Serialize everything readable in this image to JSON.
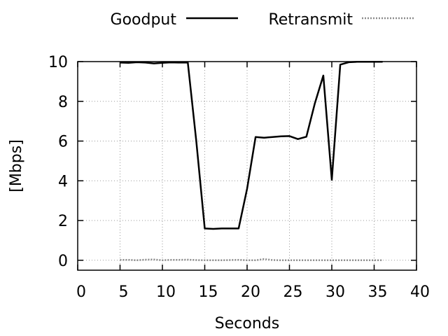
{
  "chart_data": {
    "type": "line",
    "title": "",
    "xlabel": "Seconds",
    "ylabel": "[Mbps]",
    "xlim": [
      0,
      40
    ],
    "ylim": [
      -0.5,
      10
    ],
    "x_ticks": [
      0,
      5,
      10,
      15,
      20,
      25,
      30,
      35,
      40
    ],
    "y_ticks": [
      0,
      2,
      4,
      6,
      8,
      10
    ],
    "grid": true,
    "legend_position": "top",
    "series": [
      {
        "name": "Goodput",
        "color": "#000000",
        "style": "solid",
        "x": [
          5,
          6,
          7,
          8,
          9,
          10,
          11,
          12,
          13,
          14,
          15,
          16,
          17,
          18,
          19,
          20,
          21,
          22,
          23,
          24,
          25,
          26,
          27,
          28,
          29,
          30,
          31,
          32,
          33,
          34,
          35,
          36
        ],
        "y": [
          9.95,
          9.94,
          9.97,
          9.95,
          9.91,
          9.94,
          9.96,
          9.95,
          9.95,
          6.0,
          1.6,
          1.58,
          1.6,
          1.6,
          1.6,
          3.6,
          6.2,
          6.17,
          6.2,
          6.24,
          6.25,
          6.1,
          6.22,
          7.9,
          9.3,
          4.05,
          9.85,
          9.97,
          9.99,
          9.99,
          9.99,
          9.99
        ]
      },
      {
        "name": "Retransmit",
        "color": "#8c8c8c",
        "style": "dotted",
        "x": [
          5,
          6,
          7,
          8,
          9,
          10,
          11,
          12,
          13,
          14,
          15,
          16,
          17,
          18,
          19,
          20,
          21,
          22,
          23,
          24,
          25,
          26,
          27,
          28,
          29,
          30,
          31,
          32,
          33,
          34,
          35,
          36
        ],
        "y": [
          0.02,
          0.02,
          0.0,
          0.03,
          0.04,
          0.0,
          0.02,
          0.02,
          0.03,
          0.01,
          0.0,
          0.0,
          0.0,
          0.01,
          0.02,
          0.0,
          0.0,
          0.06,
          0.01,
          0.0,
          0.0,
          0.0,
          0.0,
          0.0,
          0.0,
          0.0,
          0.0,
          0.0,
          0.0,
          0.0,
          0.0,
          0.0
        ]
      }
    ]
  }
}
